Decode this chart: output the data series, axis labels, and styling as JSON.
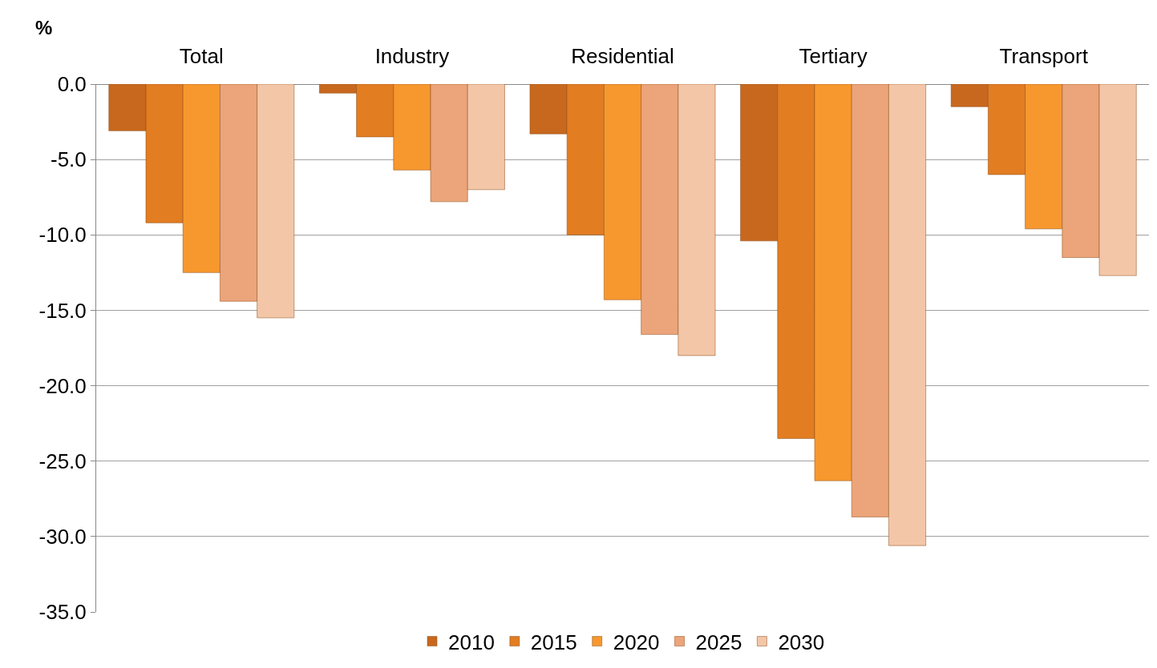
{
  "chart_data": {
    "type": "bar",
    "ylabel": "%",
    "categories": [
      "Total",
      "Industry",
      "Residential",
      "Tertiary",
      "Transport"
    ],
    "series": [
      {
        "name": "2010",
        "color": "#c8681e",
        "values": [
          -3.1,
          -0.6,
          -3.3,
          -10.4,
          -1.5
        ]
      },
      {
        "name": "2015",
        "color": "#e27d22",
        "values": [
          -9.2,
          -3.5,
          -10.0,
          -23.5,
          -6.0
        ]
      },
      {
        "name": "2020",
        "color": "#f7982e",
        "values": [
          -12.5,
          -5.7,
          -14.3,
          -26.3,
          -9.6
        ]
      },
      {
        "name": "2025",
        "color": "#eca47a",
        "values": [
          -14.4,
          -7.8,
          -16.6,
          -28.7,
          -11.5
        ]
      },
      {
        "name": "2030",
        "color": "#f3c6a8",
        "values": [
          -15.5,
          -7.0,
          -18.0,
          -30.6,
          -12.7
        ]
      }
    ],
    "ylim": [
      -35,
      0
    ],
    "yticks": [
      {
        "value": 0,
        "label": "0.0"
      },
      {
        "value": -5,
        "label": "-5.0"
      },
      {
        "value": -10,
        "label": "-10.0"
      },
      {
        "value": -15,
        "label": "-15.0"
      },
      {
        "value": -20,
        "label": "-20.0"
      },
      {
        "value": -25,
        "label": "-25.0"
      },
      {
        "value": -30,
        "label": "-30.0"
      },
      {
        "value": -35,
        "label": "-35.0"
      }
    ],
    "grid": "y",
    "legend": "bottom"
  }
}
